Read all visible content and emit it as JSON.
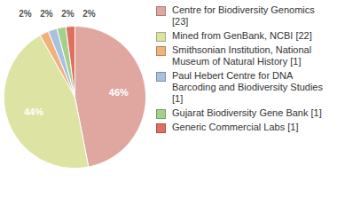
{
  "chart_data": {
    "type": "pie",
    "categories": [
      "Centre for Biodiversity Genomics [23]",
      "Mined from GenBank, NCBI [22]",
      "Smithsonian Institution, National Museum of Natural History [1]",
      "Paul Hebert Centre for DNA Barcoding and Biodiversity Studies [1]",
      "Gujarat Biodiversity Gene Bank [1]",
      "Generic Commercial Labs [1]"
    ],
    "values": [
      46,
      44,
      2,
      2,
      2,
      2
    ],
    "value_labels": [
      "46%",
      "44%",
      "2%",
      "2%",
      "2%",
      "2%"
    ],
    "colors": [
      "#e0a7a1",
      "#dde3a2",
      "#f0b27b",
      "#a9c0e0",
      "#a3d18a",
      "#e0705e"
    ],
    "data_labels": true,
    "legend": "right"
  }
}
